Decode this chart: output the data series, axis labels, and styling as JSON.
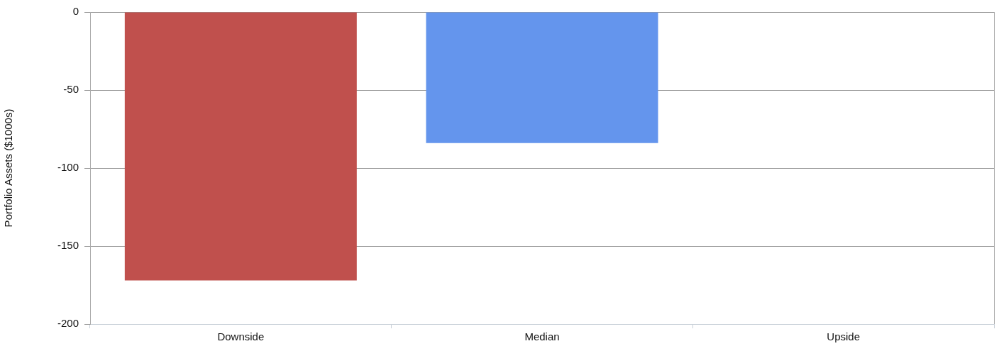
{
  "chart_data": {
    "type": "bar",
    "ylabel": "Portfolio Assets ($1000s)",
    "categories": [
      "Downside",
      "Median",
      "Upside"
    ],
    "values": [
      -172,
      -84,
      null
    ],
    "colors": [
      "#c0504d",
      "#6495ed",
      null
    ],
    "ylim": [
      -200,
      0
    ],
    "yticks": [
      -200,
      -150,
      -100,
      -50,
      0
    ],
    "grid": "y"
  }
}
